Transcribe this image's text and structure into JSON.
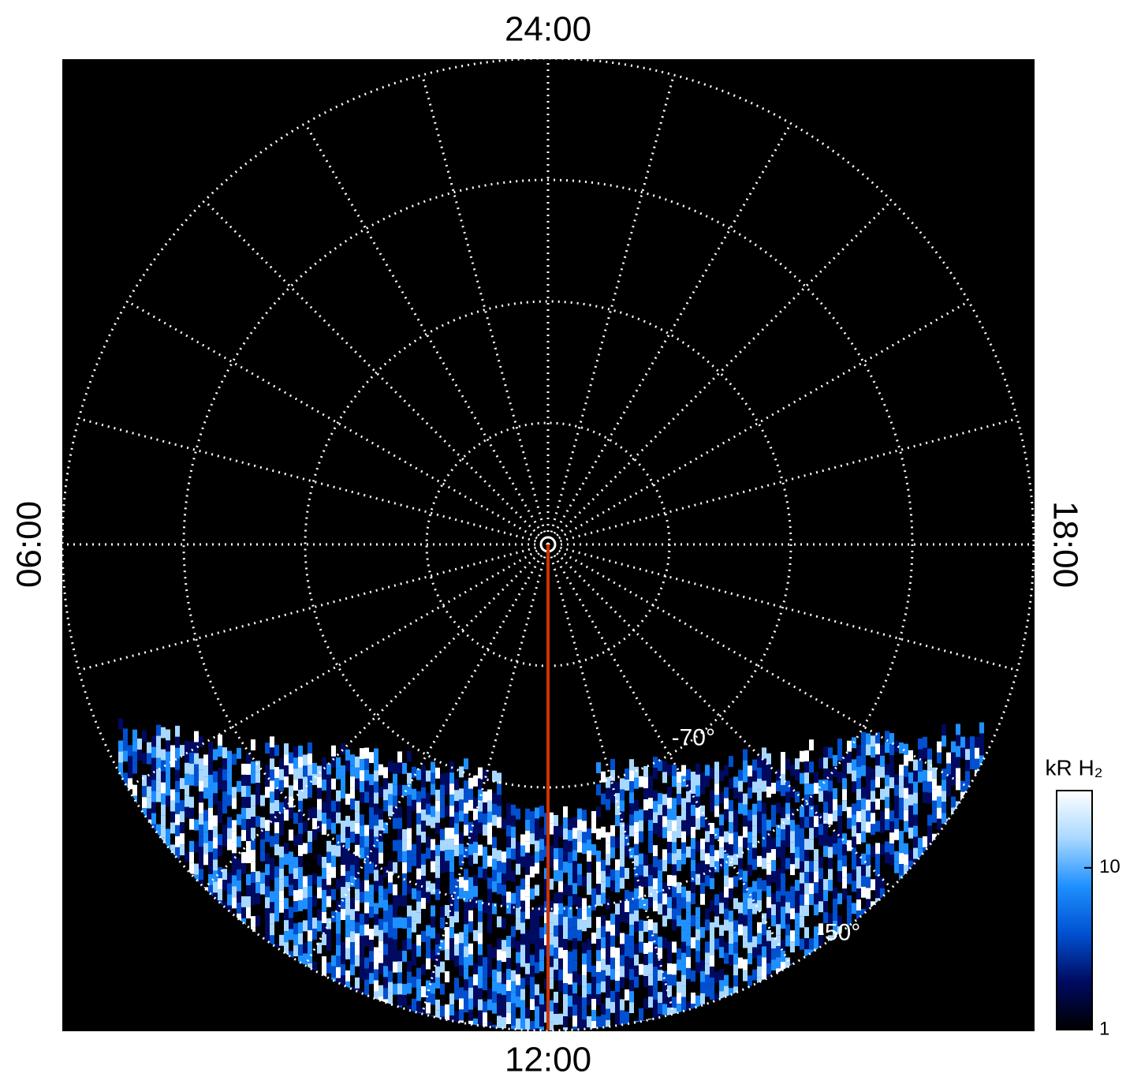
{
  "map": {
    "type": "polar",
    "local_time_labels": {
      "top": "24:00",
      "left": "06:00",
      "right": "18:00",
      "bottom": "12:00"
    },
    "lat_lim": [
      -90,
      -50
    ],
    "lat_circles": [
      -80,
      -70,
      -60,
      -50
    ],
    "lat_labels": [
      {
        "value": -70,
        "label": "-70°"
      },
      {
        "value": -50,
        "label": "-50°"
      }
    ],
    "track_color": "#cc3300",
    "colorbar": {
      "label": "kR H₂",
      "scale": "log",
      "lim": [
        1,
        30
      ],
      "ticks": [
        1,
        10
      ],
      "colors": [
        "#000000",
        "#000a60",
        "#0050d0",
        "#1e90ff",
        "#a8d8ff",
        "#ffffff"
      ]
    }
  }
}
